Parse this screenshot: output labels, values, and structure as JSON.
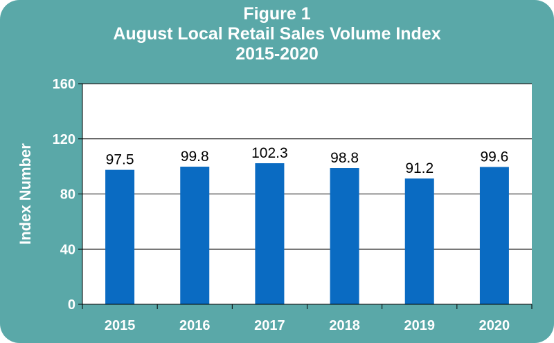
{
  "chart_data": {
    "type": "bar",
    "title": "Figure 1",
    "subtitle": "August Local Retail Sales Volume Index",
    "subtitle2": "2015-2020",
    "xlabel": "",
    "ylabel": "Index Number",
    "categories": [
      "2015",
      "2016",
      "2017",
      "2018",
      "2019",
      "2020"
    ],
    "values": [
      97.5,
      99.8,
      102.3,
      98.8,
      91.2,
      99.6
    ],
    "data_labels": [
      "97.5",
      "99.8",
      "102.3",
      "98.8",
      "91.2",
      "99.6"
    ],
    "ylim": [
      0,
      160
    ],
    "yticks": [
      0,
      40,
      80,
      120,
      160
    ],
    "ytick_labels": [
      "0",
      "40",
      "80",
      "120",
      "160"
    ],
    "grid": true,
    "legend": "none",
    "colors": {
      "frame": "#5AA8A8",
      "plot_background": "#FFFFFF",
      "bar": "#0A6BC2",
      "text": "#FFFFFF"
    }
  }
}
